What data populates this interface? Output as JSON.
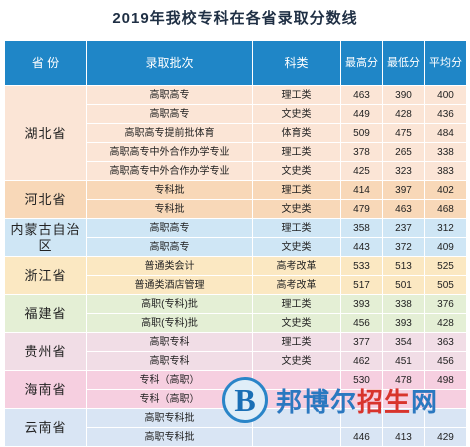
{
  "title": "2019年我校专科在各省录取分数线",
  "headers": {
    "province": "省  份",
    "batch": "录取批次",
    "subject": "科类",
    "max": "最高分",
    "min": "最低分",
    "avg": "平均分"
  },
  "groups": [
    {
      "province": "湖北省",
      "rows": [
        {
          "batch": "高职高专",
          "subject": "理工类",
          "max": "463",
          "min": "390",
          "avg": "400"
        },
        {
          "batch": "高职高专",
          "subject": "文史类",
          "max": "449",
          "min": "428",
          "avg": "436"
        },
        {
          "batch": "高职高专提前批体育",
          "subject": "体育类",
          "max": "509",
          "min": "475",
          "avg": "484"
        },
        {
          "batch": "高职高专中外合作办学专业",
          "subject": "理工类",
          "max": "378",
          "min": "265",
          "avg": "338"
        },
        {
          "batch": "高职高专中外合作办学专业",
          "subject": "文史类",
          "max": "425",
          "min": "323",
          "avg": "383"
        }
      ]
    },
    {
      "province": "河北省",
      "rows": [
        {
          "batch": "专科批",
          "subject": "理工类",
          "max": "414",
          "min": "397",
          "avg": "402"
        },
        {
          "batch": "专科批",
          "subject": "文史类",
          "max": "479",
          "min": "463",
          "avg": "468"
        }
      ]
    },
    {
      "province": "内蒙古自治区",
      "rows": [
        {
          "batch": "高职高专",
          "subject": "理工类",
          "max": "358",
          "min": "237",
          "avg": "312"
        },
        {
          "batch": "高职高专",
          "subject": "文史类",
          "max": "443",
          "min": "372",
          "avg": "409"
        }
      ]
    },
    {
      "province": "浙江省",
      "rows": [
        {
          "batch": "普通类会计",
          "subject": "高考改革",
          "max": "533",
          "min": "513",
          "avg": "525"
        },
        {
          "batch": "普通类酒店管理",
          "subject": "高考改革",
          "max": "517",
          "min": "501",
          "avg": "505"
        }
      ]
    },
    {
      "province": "福建省",
      "rows": [
        {
          "batch": "高职(专科)批",
          "subject": "理工类",
          "max": "393",
          "min": "338",
          "avg": "376"
        },
        {
          "batch": "高职(专科)批",
          "subject": "文史类",
          "max": "456",
          "min": "393",
          "avg": "428"
        }
      ]
    },
    {
      "province": "贵州省",
      "rows": [
        {
          "batch": "高职专科",
          "subject": "理工类",
          "max": "377",
          "min": "354",
          "avg": "363"
        },
        {
          "batch": "高职专科",
          "subject": "文史类",
          "max": "462",
          "min": "451",
          "avg": "456"
        }
      ]
    },
    {
      "province": "海南省",
      "rows": [
        {
          "batch": "专科（高职）",
          "subject": "",
          "max": "530",
          "min": "478",
          "avg": "498"
        },
        {
          "batch": "专科（高职）",
          "subject": "",
          "max": "",
          "min": "",
          "avg": ""
        }
      ]
    },
    {
      "province": "云南省",
      "rows": [
        {
          "batch": "高职专科批",
          "subject": "",
          "max": "",
          "min": "",
          "avg": ""
        },
        {
          "batch": "高职专科批",
          "subject": "",
          "max": "446",
          "min": "413",
          "avg": "429"
        }
      ]
    }
  ],
  "watermark": {
    "logo_letter": "B",
    "text_blue": "邦博尔",
    "text_red": "招生",
    "text_blue2": "网"
  }
}
